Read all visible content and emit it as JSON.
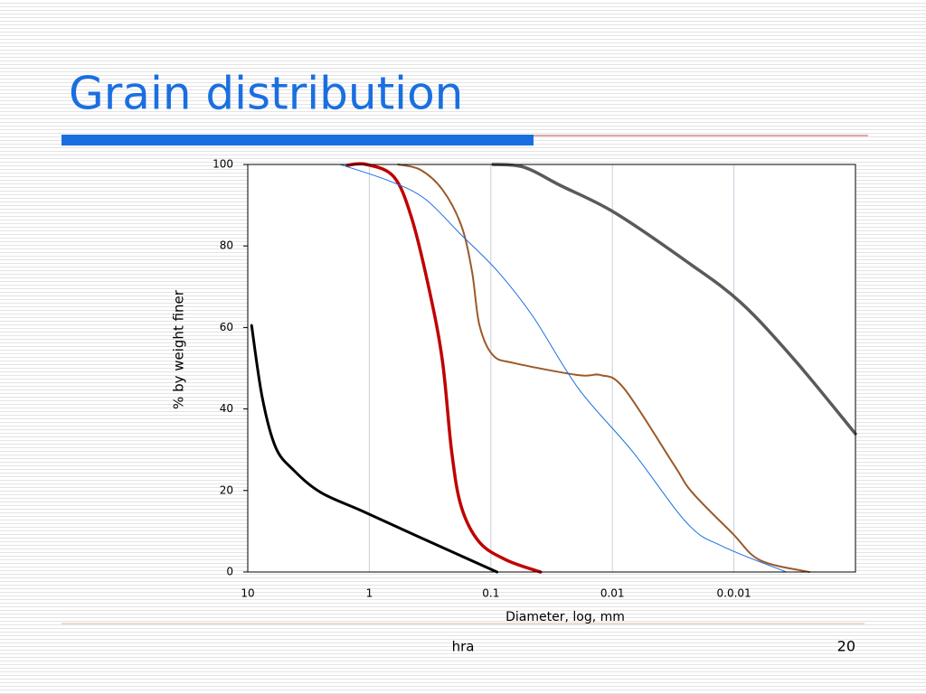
{
  "header": {
    "title": "Grain distribution"
  },
  "chart_data": {
    "type": "line",
    "xlabel": "Diameter, log, mm",
    "ylabel": "% by weight finer",
    "xscale": "log",
    "xlim": [
      10,
      0.0001
    ],
    "xticks": [
      10,
      1,
      0.1,
      0.01,
      {
        "value": 0.001,
        "label": "0.0.01"
      }
    ],
    "ylim": [
      0,
      100
    ],
    "yticks": [
      0,
      20,
      40,
      60,
      80,
      100
    ],
    "xgrid": true,
    "series": [
      {
        "color": "#000000",
        "width": 3,
        "x": [
          9.3,
          7.6,
          5.9,
          4.2,
          2.5,
          1.15,
          0.41,
          0.089
        ],
        "values": [
          60.5,
          42.8,
          30.6,
          25,
          19.5,
          15,
          8.9,
          0
        ]
      },
      {
        "color": "#c00000",
        "width": 3.5,
        "x": [
          1.52,
          1.06,
          0.63,
          0.45,
          0.32,
          0.25,
          0.21,
          0.175,
          0.124,
          0.074,
          0.039
        ],
        "values": [
          99.8,
          100,
          97,
          87,
          69,
          51.7,
          29.5,
          16,
          7.3,
          2.9,
          0
        ]
      },
      {
        "color": "#9a5a2a",
        "width": 2,
        "x": [
          0.58,
          0.38,
          0.25,
          0.175,
          0.143,
          0.124,
          0.096,
          0.063,
          0.019,
          0.0124,
          0.008,
          0.0031,
          0.0022,
          0.00103,
          0.00061,
          0.00024
        ],
        "values": [
          100,
          98.7,
          93.8,
          85,
          73.8,
          60.5,
          53.2,
          51.2,
          48.3,
          48.3,
          45,
          26.2,
          19.5,
          9.5,
          2.9,
          0
        ]
      },
      {
        "color": "#1a6fe0",
        "width": 1,
        "x": [
          1.74,
          0.69,
          0.35,
          0.175,
          0.088,
          0.045,
          0.019,
          0.0068,
          0.0024,
          0.00122,
          0.00037
        ],
        "values": [
          100,
          96,
          91.6,
          82.7,
          73.8,
          62.7,
          45,
          29.5,
          11.8,
          6.2,
          0
        ]
      },
      {
        "color": "#5a5a5a",
        "width": 3.5,
        "x": [
          0.096,
          0.053,
          0.027,
          0.0096,
          0.0024,
          0.00087,
          0.00031,
          0.0001
        ],
        "values": [
          100,
          99.3,
          94.9,
          88.2,
          76,
          66,
          51.7,
          33.9
        ]
      }
    ]
  },
  "footer": {
    "text": "hra",
    "page": 20
  }
}
